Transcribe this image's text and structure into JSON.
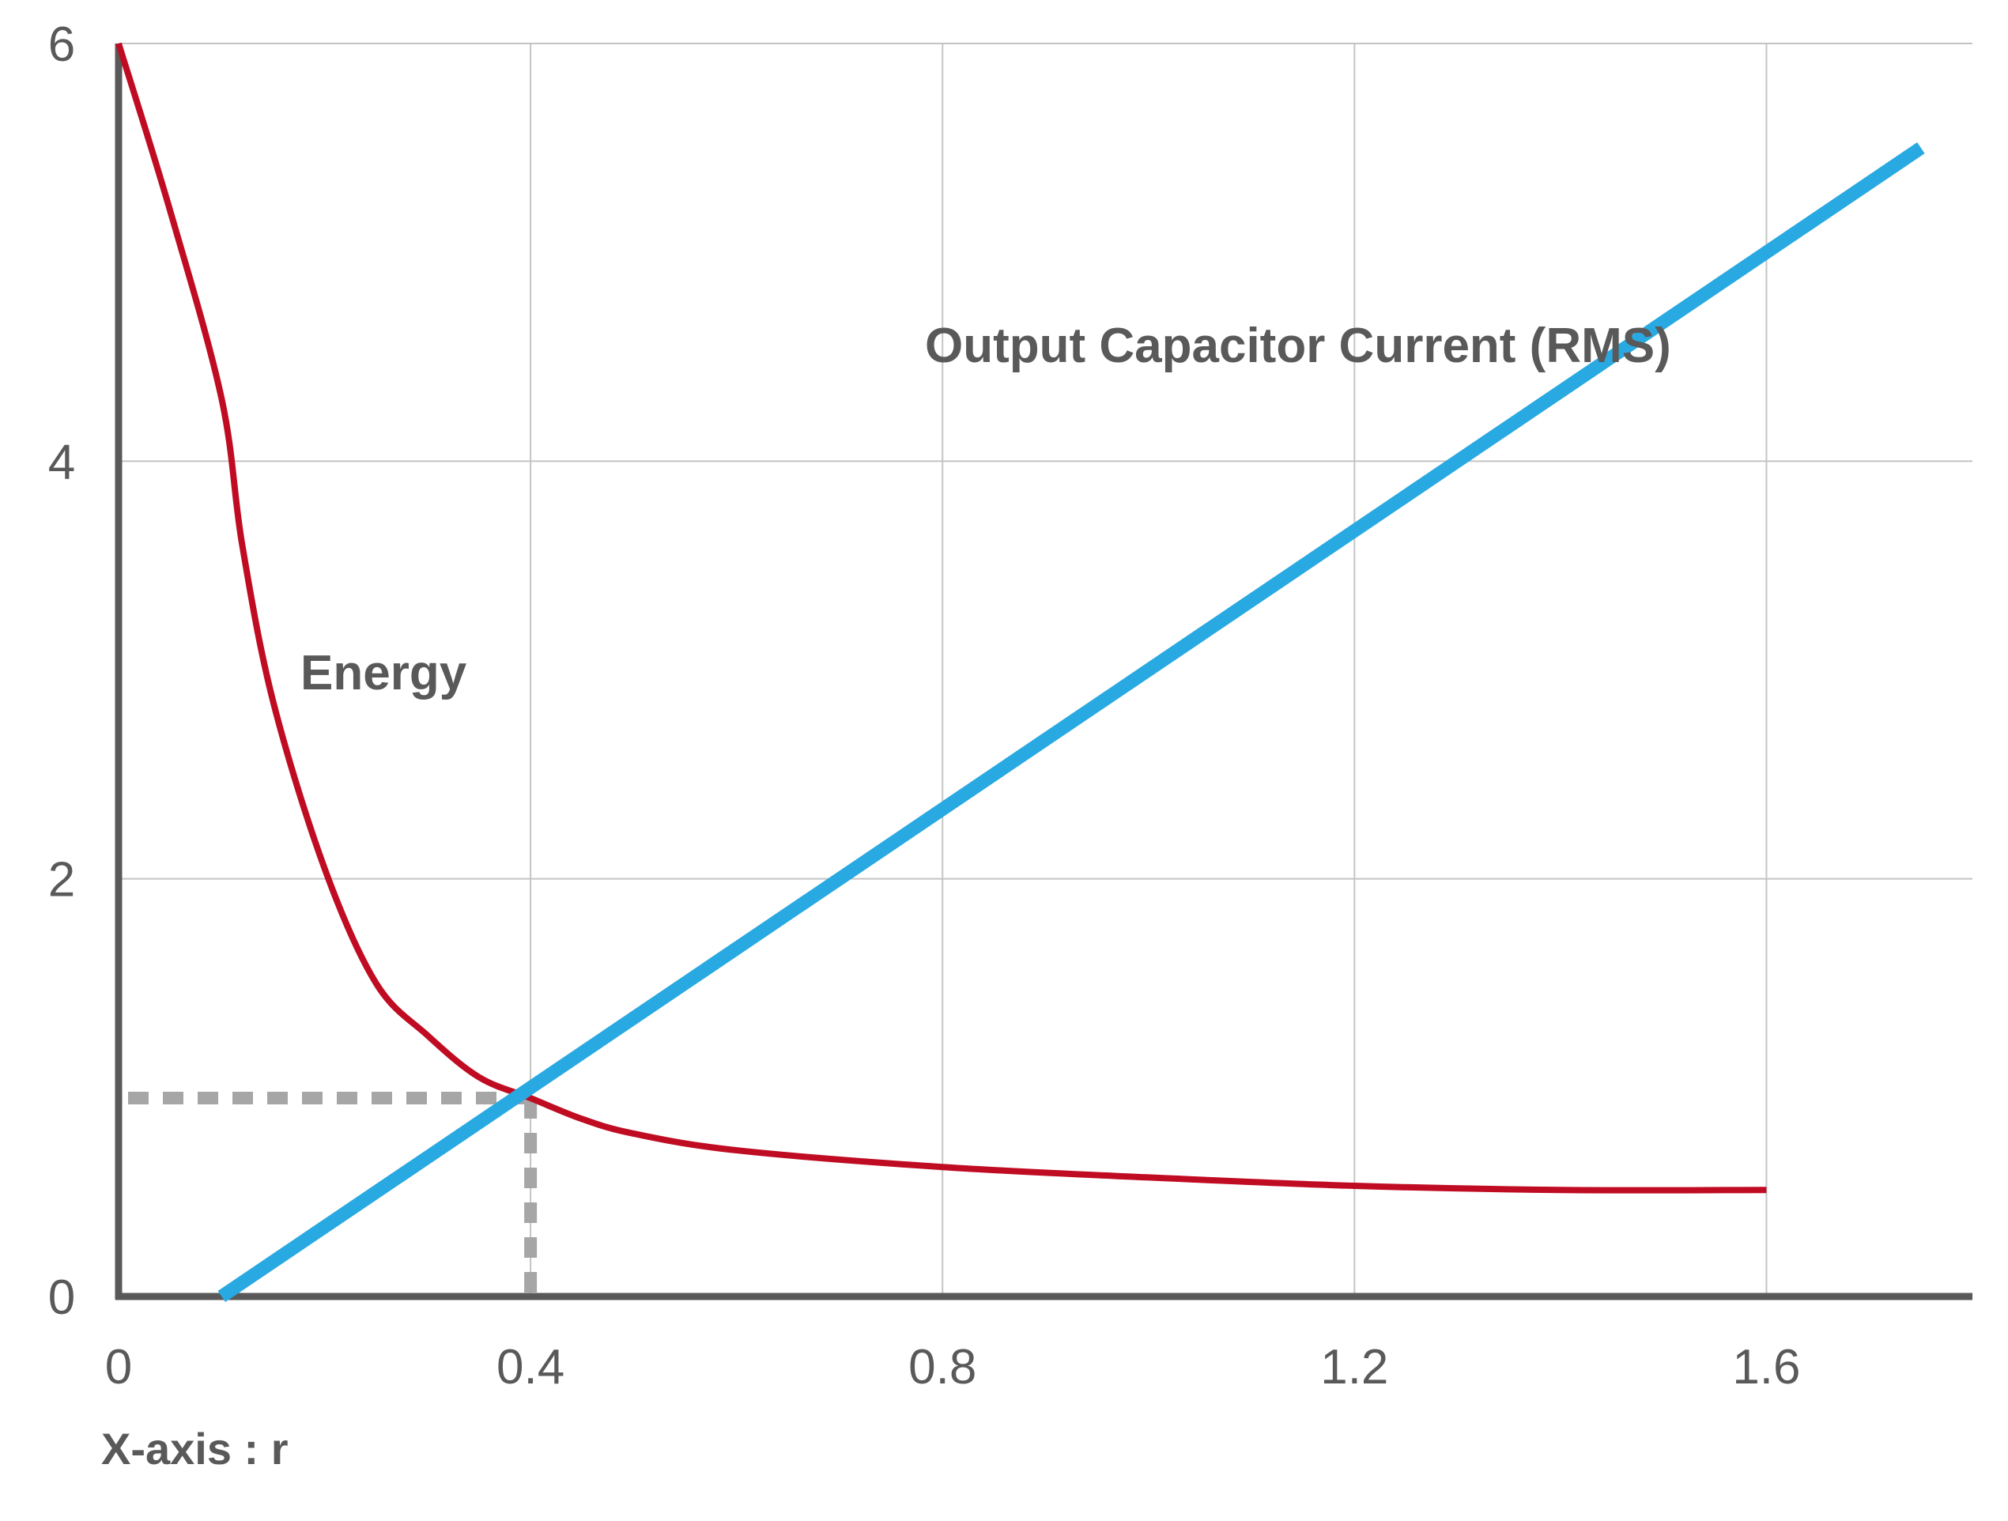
{
  "chart_data": {
    "type": "line",
    "title": "",
    "xlabel": "X-axis : r",
    "ylabel": "",
    "xlim": [
      0,
      1.8
    ],
    "ylim": [
      0,
      6
    ],
    "x_ticks": [
      0,
      0.4,
      0.8,
      1.2,
      1.6
    ],
    "x_tick_labels": [
      "0",
      "0.4",
      "0.8",
      "1.2",
      "1.6"
    ],
    "y_ticks": [
      0,
      2,
      4,
      6
    ],
    "y_tick_labels": [
      "0",
      "2",
      "4",
      "6"
    ],
    "grid": true,
    "legend": "none",
    "series": [
      {
        "name": "Energy",
        "color": "#c00c23",
        "x": [
          0,
          0.05,
          0.1,
          0.12,
          0.15,
          0.2,
          0.25,
          0.3,
          0.35,
          0.4,
          0.45,
          0.5,
          0.6,
          0.8,
          1.0,
          1.2,
          1.4,
          1.6
        ],
        "y": [
          6.0,
          5.2,
          4.3,
          3.6,
          2.85,
          2.05,
          1.5,
          1.25,
          1.05,
          0.95,
          0.85,
          0.78,
          0.7,
          0.62,
          0.57,
          0.53,
          0.51,
          0.51
        ]
      },
      {
        "name": "Output Capacitor Current (RMS)",
        "color": "#29a9e1",
        "x": [
          0.1,
          1.75
        ],
        "y": [
          0,
          5.5
        ]
      }
    ],
    "annotations": [
      {
        "type": "dashed-guide",
        "color": "#a6a6a6",
        "x": 0.4,
        "y": 0.95
      }
    ]
  }
}
